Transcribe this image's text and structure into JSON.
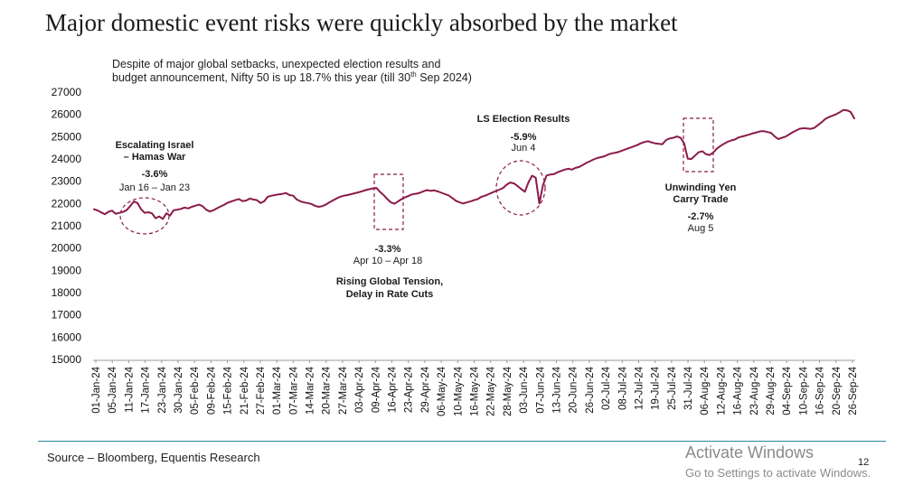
{
  "page": {
    "title": "Major domestic event risks were quickly absorbed by the market",
    "subtitle_line1": "Despite of major global setbacks, unexpected election results and",
    "subtitle_pre": "budget announcement, Nifty 50 is up 18.7% this year (till 30",
    "subtitle_sup": "th",
    "subtitle_post": " Sep 2024)",
    "source": "Source – Bloomberg, Equentis Research",
    "page_number": "12",
    "activate_title": "Activate Windows",
    "activate_sub": "Go to Settings to activate Windows."
  },
  "colors": {
    "line": "#8b1a4a",
    "annotation": "#8b1a4a",
    "rule": "#2a8a9a"
  },
  "chart_data": {
    "type": "line",
    "title": "Major domestic event risks were quickly absorbed by the market",
    "subtitle": "Despite of major global setbacks, unexpected election results and budget announcement, Nifty 50 is up 18.7% this year (till 30th Sep 2024)",
    "xlabel": "",
    "ylabel": "",
    "ylim": [
      15000,
      27000
    ],
    "yticks": [
      15000,
      16000,
      17000,
      18000,
      19000,
      20000,
      21000,
      22000,
      23000,
      24000,
      25000,
      26000,
      27000
    ],
    "x_tick_labels": [
      "01-Jan-24",
      "05-Jan-24",
      "11-Jan-24",
      "17-Jan-24",
      "23-Jan-24",
      "30-Jan-24",
      "05-Feb-24",
      "09-Feb-24",
      "15-Feb-24",
      "21-Feb-24",
      "27-Feb-24",
      "01-Mar-24",
      "07-Mar-24",
      "14-Mar-24",
      "20-Mar-24",
      "27-Mar-24",
      "03-Apr-24",
      "09-Apr-24",
      "16-Apr-24",
      "23-Apr-24",
      "29-Apr-24",
      "06-May-24",
      "10-May-24",
      "16-May-24",
      "22-May-24",
      "28-May-24",
      "03-Jun-24",
      "07-Jun-24",
      "13-Jun-24",
      "20-Jun-24",
      "26-Jun-24",
      "02-Jul-24",
      "08-Jul-24",
      "12-Jul-24",
      "19-Jul-24",
      "25-Jul-24",
      "31-Jul-24",
      "06-Aug-24",
      "12-Aug-24",
      "16-Aug-24",
      "23-Aug-24",
      "29-Aug-24",
      "04-Sep-24",
      "10-Sep-24",
      "16-Sep-24",
      "20-Sep-24",
      "26-Sep-24"
    ],
    "series": [
      {
        "name": "Nifty 50",
        "values": [
          21740,
          21690,
          21600,
          21520,
          21630,
          21680,
          21540,
          21580,
          21620,
          21700,
          21880,
          22090,
          22020,
          21740,
          21580,
          21610,
          21560,
          21340,
          21420,
          21310,
          21560,
          21460,
          21700,
          21720,
          21760,
          21820,
          21780,
          21850,
          21900,
          21950,
          21880,
          21720,
          21640,
          21700,
          21790,
          21870,
          21950,
          22040,
          22100,
          22150,
          22200,
          22110,
          22130,
          22220,
          22180,
          22150,
          22020,
          22100,
          22300,
          22350,
          22380,
          22410,
          22430,
          22470,
          22380,
          22350,
          22180,
          22100,
          22050,
          22020,
          21980,
          21900,
          21850,
          21880,
          21950,
          22050,
          22140,
          22230,
          22300,
          22350,
          22380,
          22420,
          22460,
          22500,
          22550,
          22600,
          22640,
          22680,
          22700,
          22520,
          22380,
          22200,
          22050,
          21990,
          22100,
          22200,
          22280,
          22350,
          22420,
          22440,
          22480,
          22550,
          22600,
          22570,
          22590,
          22540,
          22480,
          22420,
          22360,
          22240,
          22120,
          22050,
          22000,
          22050,
          22100,
          22150,
          22200,
          22300,
          22350,
          22420,
          22490,
          22560,
          22620,
          22700,
          22850,
          22940,
          22900,
          22780,
          22650,
          22530,
          22950,
          23250,
          23160,
          22000,
          22820,
          23260,
          23300,
          23320,
          23400,
          23460,
          23520,
          23560,
          23520,
          23600,
          23640,
          23730,
          23820,
          23900,
          23980,
          24040,
          24080,
          24120,
          24200,
          24250,
          24280,
          24320,
          24380,
          24440,
          24500,
          24560,
          24620,
          24700,
          24760,
          24800,
          24740,
          24700,
          24680,
          24660,
          24850,
          24920,
          24950,
          25010,
          24950,
          24700,
          24010,
          24000,
          24150,
          24300,
          24350,
          24220,
          24180,
          24280,
          24460,
          24580,
          24680,
          24770,
          24830,
          24870,
          24960,
          25010,
          25050,
          25100,
          25150,
          25190,
          25240,
          25250,
          25210,
          25170,
          25010,
          24890,
          24950,
          25000,
          25100,
          25200,
          25280,
          25360,
          25380,
          25370,
          25350,
          25400,
          25530,
          25650,
          25800,
          25880,
          25940,
          26010,
          26100,
          26200,
          26180,
          26110,
          25820
        ]
      }
    ],
    "annotations": [
      {
        "label_lines": [
          "Escalating Israel",
          "– Hamas War"
        ],
        "pct": "-3.6%",
        "dates": "Jan 16 – Jan 23",
        "marker": "circle"
      },
      {
        "label_lines": [
          "Rising Global Tension,",
          "Delay in Rate Cuts"
        ],
        "pct": "-3.3%",
        "dates": "Apr 10 – Apr 18",
        "marker": "rect"
      },
      {
        "label_lines": [
          "LS Election Results"
        ],
        "pct": "-5.9%",
        "dates": "Jun 4",
        "marker": "circle"
      },
      {
        "label_lines": [
          "Unwinding Yen",
          "Carry Trade"
        ],
        "pct": "-2.7%",
        "dates": "Aug 5",
        "marker": "rect"
      }
    ]
  }
}
